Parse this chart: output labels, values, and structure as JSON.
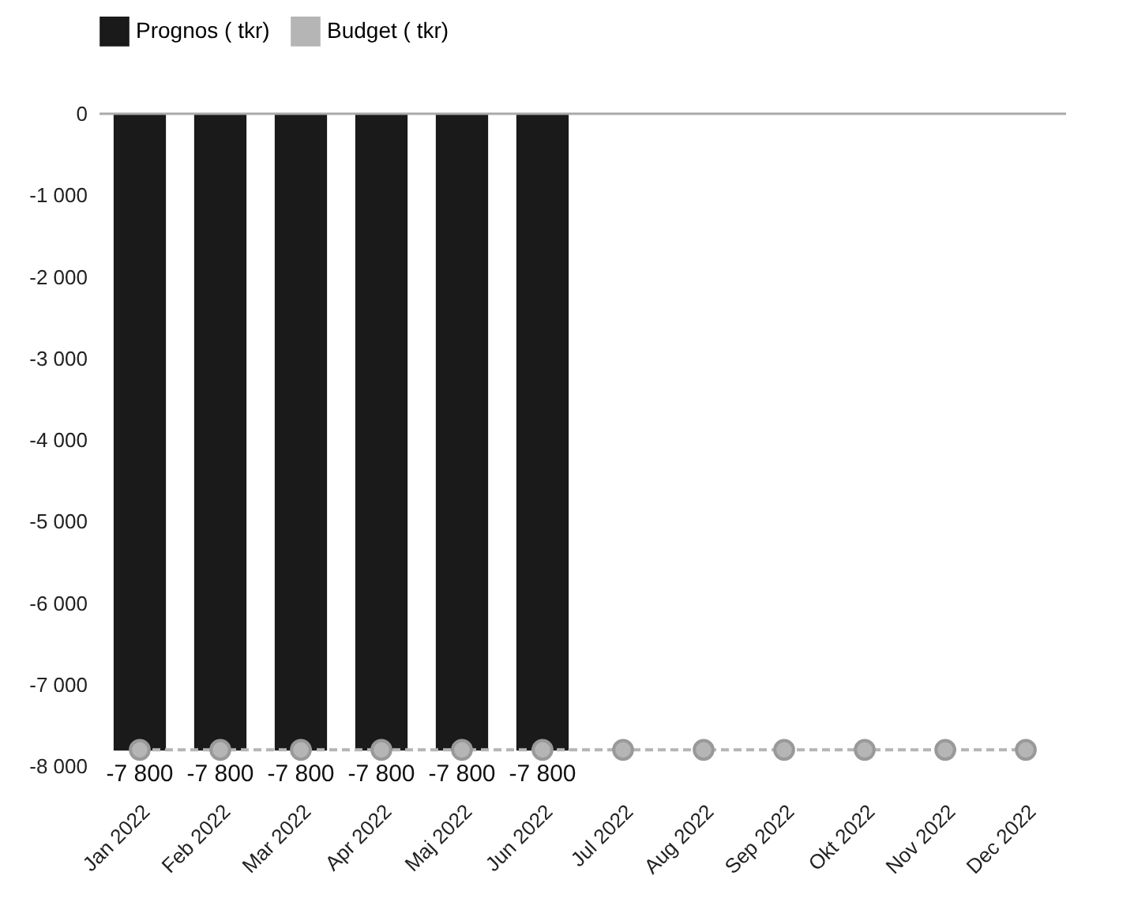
{
  "chart_data": {
    "type": "bar",
    "categories": [
      "Jan 2022",
      "Feb 2022",
      "Mar 2022",
      "Apr 2022",
      "Maj 2022",
      "Jun 2022",
      "Jul 2022",
      "Aug 2022",
      "Sep 2022",
      "Okt 2022",
      "Nov 2022",
      "Dec 2022"
    ],
    "series": [
      {
        "name": "Prognos ( tkr)",
        "color": "#1a1a1a",
        "values": [
          -7800,
          -7800,
          -7800,
          -7800,
          -7800,
          -7800,
          null,
          null,
          null,
          null,
          null,
          null
        ],
        "value_labels": [
          "-7 800",
          "-7 800",
          "-7 800",
          "-7 800",
          "-7 800",
          "-7 800",
          null,
          null,
          null,
          null,
          null,
          null
        ]
      },
      {
        "name": "Budget ( tkr)",
        "type": "line",
        "color": "#b5b5b5",
        "marker": "circle",
        "line_style": "dashed",
        "values": [
          -7800,
          -7800,
          -7800,
          -7800,
          -7800,
          -7800,
          -7800,
          -7800,
          -7800,
          -7800,
          -7800,
          -7800
        ]
      }
    ],
    "ylim": [
      -8000,
      0
    ],
    "yticks": [
      {
        "value": -8000,
        "label": "-8 000"
      },
      {
        "value": -7000,
        "label": "-7 000"
      },
      {
        "value": -6000,
        "label": "-6 000"
      },
      {
        "value": -5000,
        "label": "-5 000"
      },
      {
        "value": -4000,
        "label": "-4 000"
      },
      {
        "value": -3000,
        "label": "-3 000"
      },
      {
        "value": -2000,
        "label": "-2 000"
      },
      {
        "value": -1000,
        "label": "-1 000"
      },
      0
    ],
    "ref_lines": [
      {
        "axis": "y",
        "value": 0,
        "color": "#aaaaaa"
      }
    ],
    "legend": "top left"
  }
}
